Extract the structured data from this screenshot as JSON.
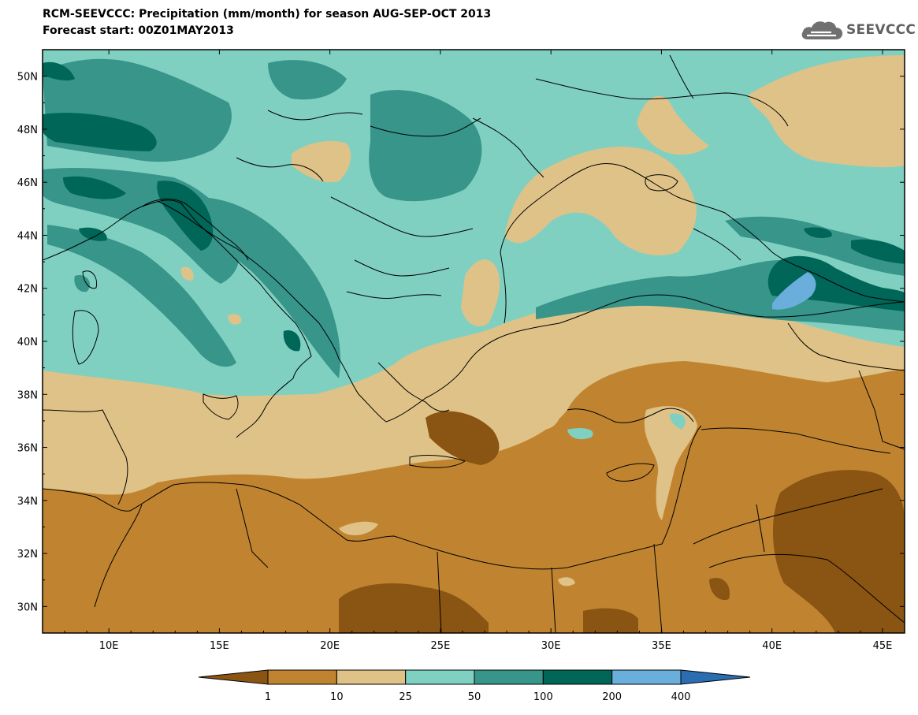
{
  "title": {
    "line1": "RCM-SEEVCCC: Precipitation (mm/month) for season AUG-SEP-OCT 2013",
    "line2": "Forecast start: 00Z01MAY2013"
  },
  "logo": {
    "text": "SEEVCCC",
    "icon": "cloud-icon"
  },
  "map": {
    "type": "filled-contour-map",
    "region": "Mediterranean / Black Sea",
    "lon_range": [
      7,
      46
    ],
    "lat_range": [
      29,
      51
    ],
    "x_tick_labels": [
      "10E",
      "15E",
      "20E",
      "25E",
      "30E",
      "35E",
      "40E",
      "45E"
    ],
    "y_tick_labels": [
      "50N",
      "48N",
      "46N",
      "44N",
      "42N",
      "40N",
      "38N",
      "36N",
      "34N",
      "32N",
      "30N"
    ]
  },
  "colorbar": {
    "levels": [
      "1",
      "10",
      "25",
      "50",
      "100",
      "200",
      "400"
    ],
    "colors": [
      "#8a5412",
      "#c08430",
      "#dfc287",
      "#80d0c2",
      "#37958a",
      "#006658",
      "#6aafdc",
      "#2a6db0"
    ]
  }
}
